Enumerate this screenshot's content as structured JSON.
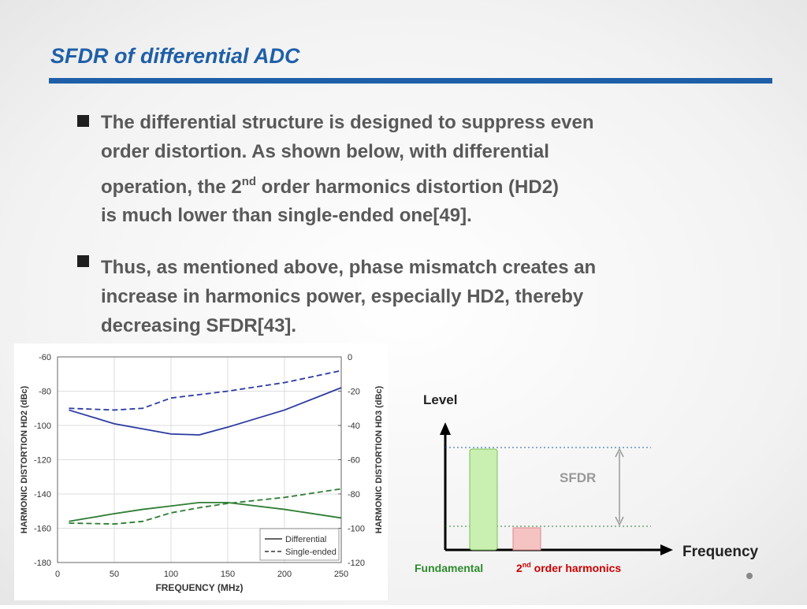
{
  "title": "SFDR of differential ADC",
  "bullets": [
    {
      "lines": [
        "The differential structure is designed to suppress even",
        "order distortion. As shown below, with differential",
        "operation, the 2",
        "is much lower than single-ended one[49]."
      ],
      "sup": "nd",
      "after": " order harmonics distortion (HD2)"
    },
    {
      "lines": [
        "Thus, as mentioned above, phase mismatch creates an",
        "increase in harmonics power, especially HD2, thereby",
        "decreasing SFDR[43]."
      ]
    }
  ],
  "chart_data": {
    "type": "line",
    "x_label": "FREQUENCY (MHz)",
    "y_label": "HARMONIC DISTORTION HD2 (dBc)",
    "y2_label": "HARMONIC DISTORTION HD3 (dBc)",
    "x": [
      10,
      50,
      75,
      100,
      125,
      150,
      200,
      250
    ],
    "series": [
      {
        "color": "#2b3aa0",
        "style": "solid",
        "values": [
          -91,
          -99,
          -102,
          -105,
          -105.5,
          -101,
          -91,
          -78
        ]
      },
      {
        "color": "#2b3aa0",
        "style": "dashed",
        "values": [
          -90,
          -91,
          -90,
          -84,
          -82,
          -80,
          -75,
          -68
        ]
      },
      {
        "color": "#2e7d32",
        "style": "solid",
        "axis": "y2",
        "values": [
          -96,
          -91.5,
          -89,
          -87,
          -85,
          -85,
          -89,
          -94
        ]
      },
      {
        "color": "#2e7d32",
        "style": "dashed",
        "axis": "y2",
        "values": [
          -97,
          -97.5,
          -96,
          -91,
          -88,
          -85.5,
          -82,
          -77
        ]
      }
    ],
    "legend": [
      {
        "name": "Differential",
        "style": "solid"
      },
      {
        "name": "Single-ended",
        "style": "dashed"
      }
    ],
    "xlim": [
      0,
      250
    ],
    "xticks": [
      0,
      50,
      100,
      150,
      200,
      250
    ],
    "ylim": [
      -180,
      -60
    ],
    "yticks": [
      -60,
      -80,
      -100,
      -120,
      -140,
      -160,
      -180
    ],
    "y2lim": [
      -120,
      0
    ],
    "y2ticks": [
      0,
      -20,
      -40,
      -60,
      -80,
      -100,
      -120
    ],
    "grid": true
  },
  "diagram": {
    "y_label": "Level",
    "x_label": "Frequency",
    "sfdr": "SFDR",
    "fundamental": "Fundamental",
    "harmonic": "2",
    "harmonic_sup": "nd",
    "harmonic_after": " order harmonics"
  }
}
